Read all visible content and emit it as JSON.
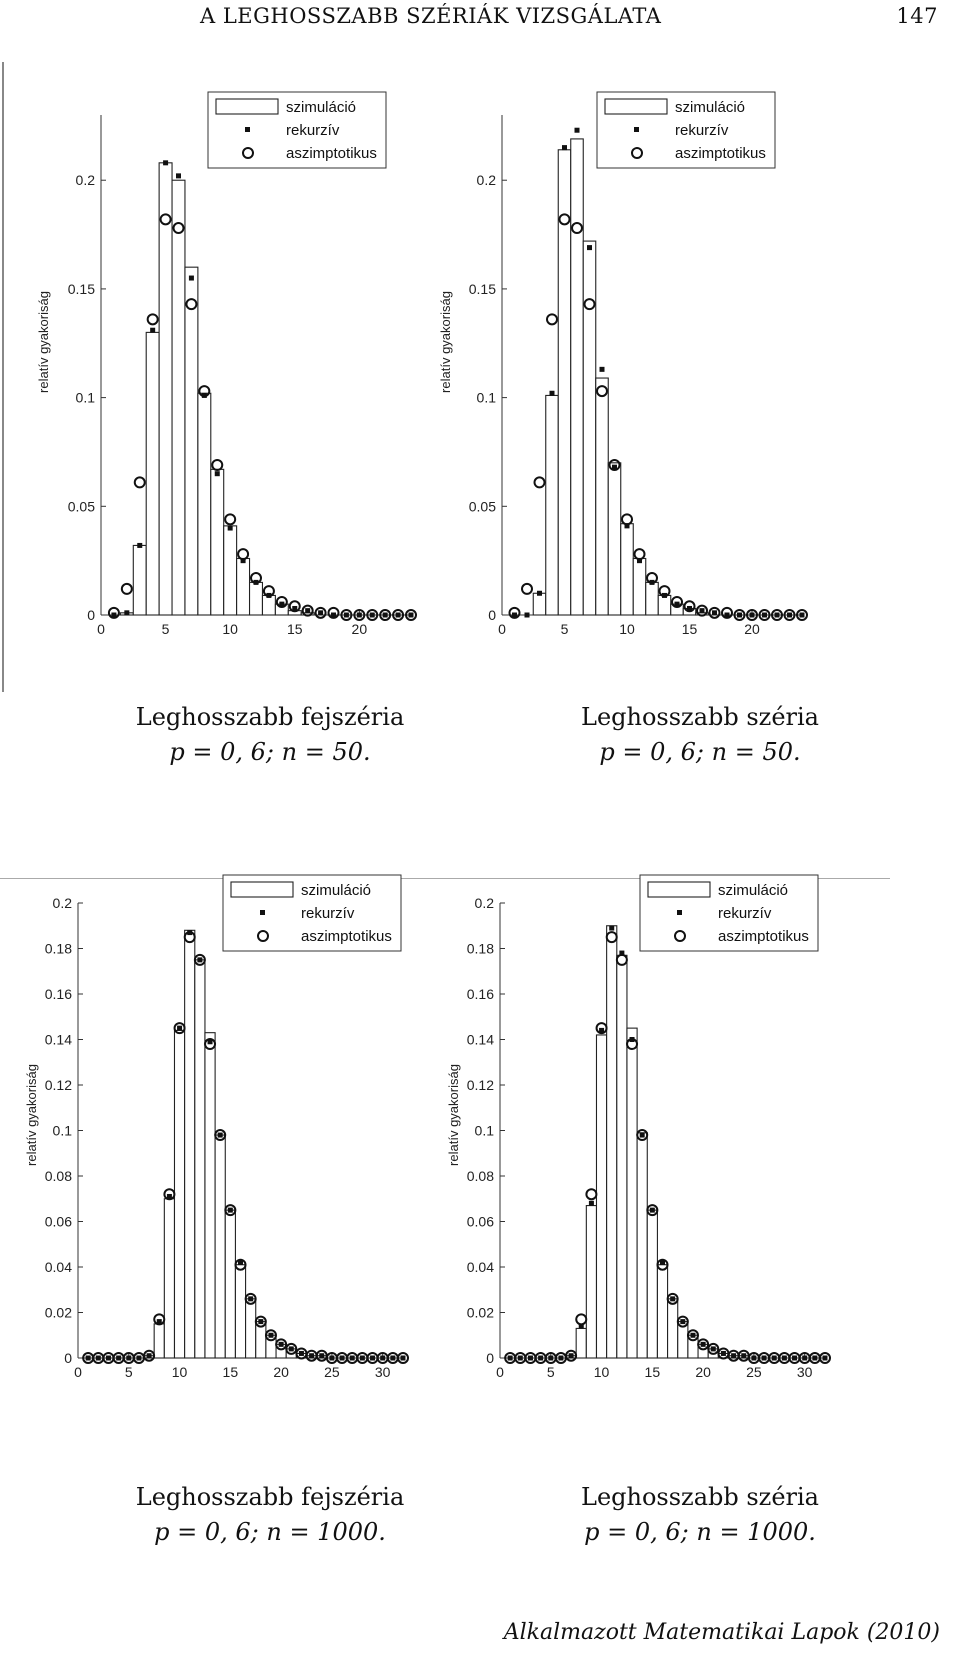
{
  "header": {
    "title": "A LEGHOSSZABB SZÉRIÁK VIZSGÁLATA",
    "page_number": "147"
  },
  "footer": "Alkalmazott Matematikai Lapok (2010)",
  "legend": {
    "sim": "szimuláció",
    "rec": "rekurzív",
    "asym": "aszimptotikus"
  },
  "ylabel": "relatív gyakoriság",
  "captions": [
    {
      "line1": "Leghosszabb fejszéria",
      "line2": "p = 0, 6; n = 50."
    },
    {
      "line1": "Leghosszabb széria",
      "line2": "p = 0, 6; n = 50."
    },
    {
      "line1": "Leghosszabb fejszéria",
      "line2": "p = 0, 6; n = 1000."
    },
    {
      "line1": "Leghosszabb széria",
      "line2": "p = 0, 6; n = 1000."
    }
  ],
  "chart_data": [
    {
      "type": "bar",
      "xlim": [
        0,
        24
      ],
      "ylim": [
        0,
        0.23
      ],
      "xticks": [
        0,
        5,
        10,
        15,
        20
      ],
      "yticks": [
        0,
        0.05,
        0.1,
        0.15,
        0.2
      ],
      "ytick_labels": [
        "0",
        "0.05",
        "0.1",
        "0.15",
        "0.2"
      ],
      "ylabel": "relatív gyakoriság",
      "x": [
        1,
        2,
        3,
        4,
        5,
        6,
        7,
        8,
        9,
        10,
        11,
        12,
        13,
        14,
        15,
        16,
        17,
        18,
        19,
        20,
        21,
        22,
        23,
        24
      ],
      "series": [
        {
          "name": "szimuláció",
          "values": [
            0,
            0.001,
            0.032,
            0.13,
            0.208,
            0.2,
            0.16,
            0.102,
            0.067,
            0.041,
            0.026,
            0.015,
            0.009,
            0.005,
            0.002,
            0.001,
            0,
            0,
            0,
            0,
            0,
            0,
            0,
            0
          ]
        },
        {
          "name": "rekurzív",
          "values": [
            0,
            0.001,
            0.032,
            0.131,
            0.208,
            0.202,
            0.155,
            0.101,
            0.065,
            0.04,
            0.025,
            0.015,
            0.009,
            0.005,
            0.003,
            0.002,
            0.001,
            0,
            0,
            0,
            0,
            0,
            0,
            0
          ]
        },
        {
          "name": "aszimptotikus",
          "values": [
            0.001,
            0.012,
            0.061,
            0.136,
            0.182,
            0.178,
            0.143,
            0.103,
            0.069,
            0.044,
            0.028,
            0.017,
            0.011,
            0.006,
            0.004,
            0.002,
            0.001,
            0.001,
            0,
            0,
            0,
            0,
            0,
            0
          ]
        }
      ]
    },
    {
      "type": "bar",
      "xlim": [
        0,
        24
      ],
      "ylim": [
        0,
        0.23
      ],
      "xticks": [
        0,
        5,
        10,
        15,
        20
      ],
      "yticks": [
        0,
        0.05,
        0.1,
        0.15,
        0.2
      ],
      "ytick_labels": [
        "0",
        "0.05",
        "0.1",
        "0.15",
        "0.2"
      ],
      "ylabel": "relatív gyakoriság",
      "x": [
        1,
        2,
        3,
        4,
        5,
        6,
        7,
        8,
        9,
        10,
        11,
        12,
        13,
        14,
        15,
        16,
        17,
        18,
        19,
        20,
        21,
        22,
        23,
        24
      ],
      "series": [
        {
          "name": "szimuláció",
          "values": [
            0,
            0,
            0.01,
            0.101,
            0.214,
            0.219,
            0.172,
            0.109,
            0.07,
            0.042,
            0.026,
            0.015,
            0.009,
            0.005,
            0.003,
            0.001,
            0,
            0,
            0,
            0,
            0,
            0,
            0,
            0
          ]
        },
        {
          "name": "rekurzív",
          "values": [
            0,
            0,
            0.01,
            0.102,
            0.215,
            0.223,
            0.169,
            0.113,
            0.068,
            0.041,
            0.025,
            0.015,
            0.009,
            0.005,
            0.003,
            0.002,
            0.001,
            0,
            0,
            0,
            0,
            0,
            0,
            0
          ]
        },
        {
          "name": "aszimptotikus",
          "values": [
            0.001,
            0.012,
            0.061,
            0.136,
            0.182,
            0.178,
            0.143,
            0.103,
            0.069,
            0.044,
            0.028,
            0.017,
            0.011,
            0.006,
            0.004,
            0.002,
            0.001,
            0.001,
            0,
            0,
            0,
            0,
            0,
            0
          ]
        }
      ]
    },
    {
      "type": "bar",
      "xlim": [
        0,
        32
      ],
      "ylim": [
        0,
        0.2
      ],
      "xticks": [
        0,
        5,
        10,
        15,
        20,
        25,
        30
      ],
      "yticks": [
        0,
        0.02,
        0.04,
        0.06,
        0.08,
        0.1,
        0.12,
        0.14,
        0.16,
        0.18,
        0.2
      ],
      "ytick_labels": [
        "0",
        "0.02",
        "0.04",
        "0.06",
        "0.08",
        "0.1",
        "0.12",
        "0.14",
        "0.16",
        "0.18",
        "0.2"
      ],
      "ylabel": "relatív gyakoriság",
      "x": [
        1,
        2,
        3,
        4,
        5,
        6,
        7,
        8,
        9,
        10,
        11,
        12,
        13,
        14,
        15,
        16,
        17,
        18,
        19,
        20,
        21,
        22,
        23,
        24,
        25,
        26,
        27,
        28,
        29,
        30,
        31,
        32
      ],
      "series": [
        {
          "name": "szimuláció",
          "values": [
            0,
            0,
            0,
            0,
            0,
            0,
            0.001,
            0.015,
            0.07,
            0.144,
            0.188,
            0.175,
            0.143,
            0.098,
            0.065,
            0.041,
            0.026,
            0.016,
            0.01,
            0.006,
            0.004,
            0.002,
            0.001,
            0.001,
            0,
            0,
            0,
            0,
            0,
            0,
            0,
            0
          ]
        },
        {
          "name": "rekurzív",
          "values": [
            0,
            0,
            0,
            0,
            0,
            0,
            0.001,
            0.016,
            0.071,
            0.145,
            0.187,
            0.175,
            0.139,
            0.098,
            0.065,
            0.042,
            0.026,
            0.016,
            0.01,
            0.006,
            0.004,
            0.002,
            0.001,
            0.001,
            0,
            0,
            0,
            0,
            0,
            0,
            0,
            0
          ]
        },
        {
          "name": "aszimptotikus",
          "values": [
            0,
            0,
            0,
            0,
            0,
            0,
            0.001,
            0.017,
            0.072,
            0.145,
            0.185,
            0.175,
            0.138,
            0.098,
            0.065,
            0.041,
            0.026,
            0.016,
            0.01,
            0.006,
            0.004,
            0.002,
            0.001,
            0.001,
            0,
            0,
            0,
            0,
            0,
            0,
            0,
            0
          ]
        }
      ]
    },
    {
      "type": "bar",
      "xlim": [
        0,
        32
      ],
      "ylim": [
        0,
        0.2
      ],
      "xticks": [
        0,
        5,
        10,
        15,
        20,
        25,
        30
      ],
      "yticks": [
        0,
        0.02,
        0.04,
        0.06,
        0.08,
        0.1,
        0.12,
        0.14,
        0.16,
        0.18,
        0.2
      ],
      "ytick_labels": [
        "0",
        "0.02",
        "0.04",
        "0.06",
        "0.08",
        "0.1",
        "0.12",
        "0.14",
        "0.16",
        "0.18",
        "0.2"
      ],
      "ylabel": "relatív gyakoriság",
      "x": [
        1,
        2,
        3,
        4,
        5,
        6,
        7,
        8,
        9,
        10,
        11,
        12,
        13,
        14,
        15,
        16,
        17,
        18,
        19,
        20,
        21,
        22,
        23,
        24,
        25,
        26,
        27,
        28,
        29,
        30,
        31,
        32
      ],
      "series": [
        {
          "name": "szimuláció",
          "values": [
            0,
            0,
            0,
            0,
            0,
            0,
            0.001,
            0.013,
            0.067,
            0.142,
            0.19,
            0.177,
            0.145,
            0.099,
            0.065,
            0.041,
            0.026,
            0.016,
            0.01,
            0.006,
            0.004,
            0.002,
            0.001,
            0.001,
            0,
            0,
            0,
            0,
            0,
            0,
            0,
            0
          ]
        },
        {
          "name": "rekurzív",
          "values": [
            0,
            0,
            0,
            0,
            0,
            0,
            0.001,
            0.014,
            0.068,
            0.144,
            0.189,
            0.178,
            0.14,
            0.098,
            0.065,
            0.042,
            0.026,
            0.016,
            0.01,
            0.006,
            0.004,
            0.002,
            0.001,
            0.001,
            0,
            0,
            0,
            0,
            0,
            0,
            0,
            0
          ]
        },
        {
          "name": "aszimptotikus",
          "values": [
            0,
            0,
            0,
            0,
            0,
            0,
            0.001,
            0.017,
            0.072,
            0.145,
            0.185,
            0.175,
            0.138,
            0.098,
            0.065,
            0.041,
            0.026,
            0.016,
            0.01,
            0.006,
            0.004,
            0.002,
            0.001,
            0.001,
            0,
            0,
            0,
            0,
            0,
            0,
            0,
            0
          ]
        }
      ]
    }
  ]
}
